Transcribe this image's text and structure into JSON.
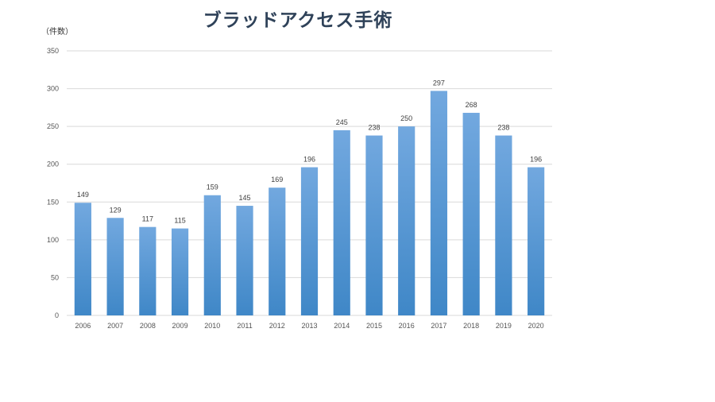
{
  "chart_data": {
    "type": "bar",
    "title": "ブラッドアクセス手術",
    "ylabel": "（件数）",
    "xlabel": "",
    "categories": [
      "2006",
      "2007",
      "2008",
      "2009",
      "2010",
      "2011",
      "2012",
      "2013",
      "2014",
      "2015",
      "2016",
      "2017",
      "2018",
      "2019",
      "2020"
    ],
    "values": [
      149,
      129,
      117,
      115,
      159,
      145,
      169,
      196,
      245,
      238,
      250,
      297,
      268,
      238,
      196
    ],
    "ylim": [
      0,
      350
    ],
    "yticks": [
      0,
      50,
      100,
      150,
      200,
      250,
      300,
      350
    ],
    "grid": true,
    "legend": "none",
    "bar_color_top": "#72a8df",
    "bar_color_bottom": "#3f87c7",
    "grid_color": "#d9d9d9"
  }
}
